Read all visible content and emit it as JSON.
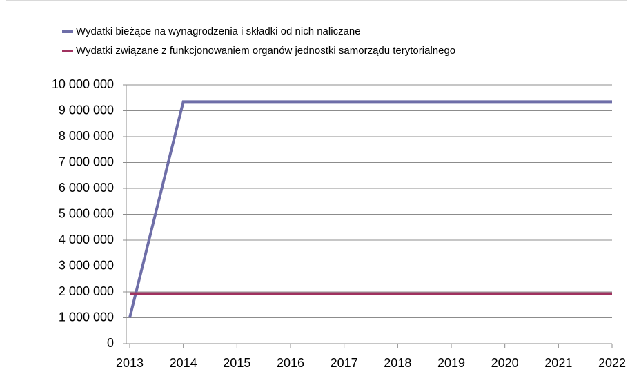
{
  "chart_data": {
    "type": "line",
    "x": [
      2013,
      2014,
      2015,
      2016,
      2017,
      2018,
      2019,
      2020,
      2021,
      2022
    ],
    "series": [
      {
        "name": "Wydatki bieżące na wynagrodzenia i składki od nich naliczane",
        "color": "#6e6ea8",
        "values": [
          1000000,
          9350000,
          9350000,
          9350000,
          9350000,
          9350000,
          9350000,
          9350000,
          9350000,
          9350000
        ]
      },
      {
        "name": "Wydatki związane z funkcjonowaniem organów jednostki samorządu terytorialnego",
        "color": "#a0325f",
        "values": [
          1930000,
          1930000,
          1930000,
          1930000,
          1930000,
          1930000,
          1930000,
          1930000,
          1930000,
          1930000
        ]
      }
    ],
    "xlim": [
      2013,
      2022
    ],
    "xticks": [
      2013,
      2014,
      2015,
      2016,
      2017,
      2018,
      2019,
      2020,
      2021,
      2022
    ],
    "ylim": [
      0,
      10000000
    ],
    "yticks": [
      0,
      {
        "value": 1000000,
        "label": "1 000 000"
      },
      {
        "value": 2000000,
        "label": "2 000 000"
      },
      {
        "value": 3000000,
        "label": "3 000 000"
      },
      {
        "value": 4000000,
        "label": "4 000 000"
      },
      {
        "value": 5000000,
        "label": "5 000 000"
      },
      {
        "value": 6000000,
        "label": "6 000 000"
      },
      {
        "value": 7000000,
        "label": "7 000 000"
      },
      {
        "value": 8000000,
        "label": "8 000 000"
      },
      {
        "value": 9000000,
        "label": "9 000 000"
      },
      {
        "value": 10000000,
        "label": "10 000 000"
      }
    ],
    "grid": true,
    "legend": "top"
  }
}
